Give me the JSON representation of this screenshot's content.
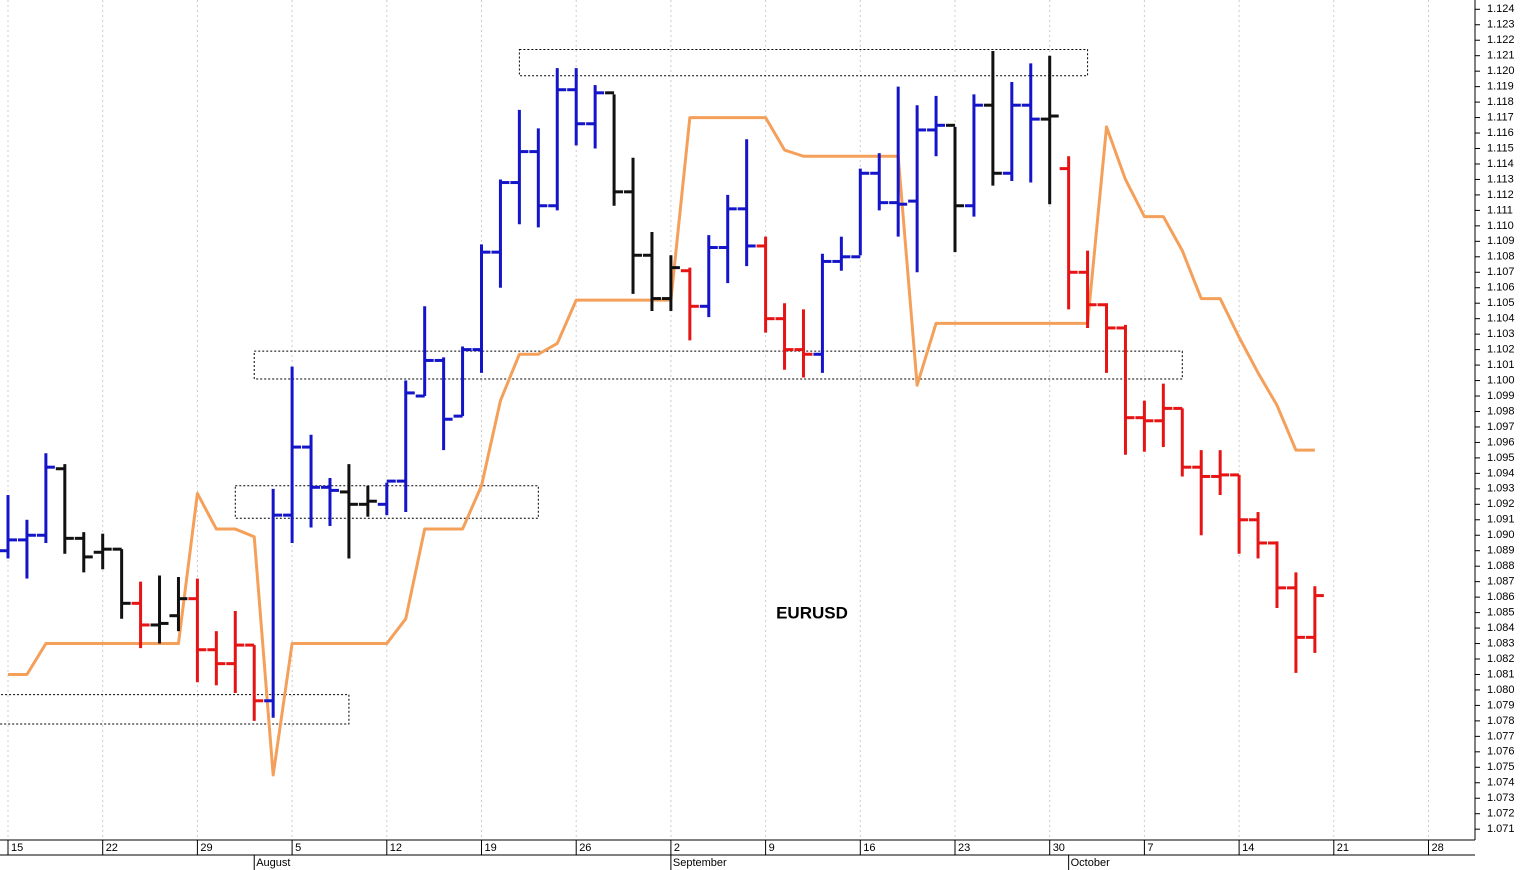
{
  "chart_data": {
    "type": "ohlc",
    "annotation": "EURUSD",
    "categories": [
      "15",
      null,
      null,
      null,
      null,
      "22",
      null,
      null,
      null,
      null,
      "29",
      null,
      null,
      null,
      null,
      "5",
      null,
      null,
      null,
      null,
      "12",
      null,
      null,
      null,
      null,
      "19",
      null,
      null,
      null,
      null,
      "26",
      null,
      null,
      null,
      null,
      "2",
      null,
      null,
      null,
      null,
      "9",
      null,
      null,
      null,
      null,
      "16",
      null,
      null,
      null,
      null,
      "23",
      null,
      null,
      null,
      null,
      "30",
      null,
      null,
      null,
      null,
      "7",
      null,
      null,
      null,
      null,
      "14",
      null,
      null,
      null,
      null,
      "21",
      null,
      null,
      null,
      null,
      "28",
      null,
      null
    ],
    "month_labels": [
      null,
      null,
      null,
      null,
      null,
      null,
      null,
      null,
      null,
      null,
      null,
      null,
      null,
      "August",
      null,
      null,
      null,
      null,
      null,
      null,
      null,
      null,
      null,
      null,
      null,
      null,
      null,
      null,
      null,
      null,
      null,
      null,
      null,
      null,
      null,
      "September",
      null,
      null,
      null,
      null,
      null,
      null,
      null,
      null,
      null,
      null,
      null,
      null,
      null,
      null,
      null,
      null,
      null,
      null,
      null,
      null,
      "October",
      null,
      null,
      null,
      null,
      null,
      null,
      null,
      null,
      null,
      null,
      null,
      null,
      null,
      null,
      null,
      null,
      null,
      null,
      null,
      null,
      null
    ],
    "open": [
      1.089,
      1.0897,
      1.09,
      1.0943,
      1.0898,
      1.0889,
      1.0891,
      1.0856,
      1.0842,
      1.0848,
      1.0859,
      1.0826,
      1.0817,
      1.0829,
      1.0793,
      1.0913,
      1.0957,
      1.0931,
      1.0928,
      1.092,
      1.092,
      1.0935,
      1.099,
      1.1013,
      1.0977,
      1.102,
      1.1083,
      1.1128,
      1.1148,
      1.1113,
      1.1188,
      1.1166,
      1.1186,
      1.1122,
      1.1081,
      1.1053,
      1.1071,
      1.1048,
      1.1086,
      1.1111,
      1.1087,
      1.104,
      1.102,
      1.1017,
      1.1077,
      1.108,
      1.1134,
      1.1115,
      1.1116,
      1.1162,
      1.1165,
      1.1113,
      1.1178,
      1.1134,
      1.1178,
      1.1169,
      1.1137,
      1.107,
      1.1049,
      1.1034,
      1.0976,
      1.0974,
      1.0982,
      1.0944,
      1.0938,
      1.0939,
      1.091,
      1.0895,
      1.0866,
      1.0834,
      null,
      null,
      null,
      null,
      null,
      null,
      null,
      null
    ],
    "high": [
      1.0926,
      1.091,
      1.0953,
      1.0946,
      1.0902,
      1.0901,
      1.0891,
      1.087,
      1.0874,
      1.0873,
      1.0872,
      1.0838,
      1.0851,
      1.0829,
      1.093,
      1.1009,
      1.0965,
      1.0937,
      1.0946,
      1.0932,
      1.0934,
      1.1,
      1.1048,
      1.1015,
      1.1022,
      1.1088,
      1.113,
      1.1175,
      1.1163,
      1.1202,
      1.1202,
      1.1191,
      1.1185,
      1.1144,
      1.1096,
      1.1081,
      1.1073,
      1.1094,
      1.112,
      1.1156,
      1.1093,
      1.105,
      1.1046,
      1.1082,
      1.1093,
      1.1137,
      1.1147,
      1.119,
      1.1178,
      1.1184,
      1.1164,
      1.1185,
      1.1213,
      1.1193,
      1.1205,
      1.121,
      1.1145,
      1.1084,
      1.105,
      1.1036,
      1.0987,
      1.0998,
      1.0982,
      1.0955,
      1.0955,
      1.0939,
      1.0915,
      1.0896,
      1.0876,
      1.0867,
      null,
      null,
      null,
      null,
      null,
      null,
      null,
      null
    ],
    "low": [
      1.0885,
      1.0872,
      1.0895,
      1.0888,
      1.0876,
      1.0878,
      1.0846,
      1.0827,
      1.083,
      1.0838,
      1.0805,
      1.0803,
      1.0798,
      1.078,
      1.0782,
      1.0895,
      1.0905,
      1.0906,
      1.0885,
      1.0912,
      1.0913,
      1.0915,
      1.099,
      1.0955,
      1.0977,
      1.1005,
      1.106,
      1.1101,
      1.1099,
      1.111,
      1.1152,
      1.115,
      1.1113,
      1.1056,
      1.1045,
      1.1045,
      1.1026,
      1.1041,
      1.1063,
      1.1074,
      1.1031,
      1.1007,
      1.1002,
      1.1005,
      1.1071,
      1.1081,
      1.111,
      1.1093,
      1.107,
      1.1145,
      1.1083,
      1.1106,
      1.1126,
      1.1129,
      1.1128,
      1.1114,
      1.1046,
      1.1034,
      1.1005,
      1.0952,
      1.0954,
      1.0957,
      1.0938,
      1.09,
      1.0926,
      1.0888,
      1.0885,
      1.0853,
      1.0811,
      1.0824,
      null,
      null,
      null,
      null,
      null,
      null,
      null,
      null
    ],
    "close": [
      1.0897,
      1.09,
      1.0944,
      1.0898,
      1.0886,
      1.0891,
      1.0856,
      1.0842,
      1.0843,
      1.0859,
      1.0826,
      1.0817,
      1.0829,
      1.0793,
      1.0913,
      1.0957,
      1.0931,
      1.0929,
      1.092,
      1.0922,
      1.0935,
      1.0992,
      1.1013,
      1.0975,
      1.102,
      1.1083,
      1.1128,
      1.1148,
      1.1113,
      1.1188,
      1.1166,
      1.1186,
      1.1122,
      1.1081,
      1.1053,
      1.1073,
      1.1048,
      1.1086,
      1.1111,
      1.1087,
      1.104,
      1.102,
      1.1017,
      1.1077,
      1.108,
      1.1134,
      1.1115,
      1.1114,
      1.1162,
      1.1165,
      1.1113,
      1.1178,
      1.1134,
      1.1178,
      1.1169,
      1.1171,
      1.107,
      1.1049,
      1.1034,
      1.0976,
      1.0974,
      1.0982,
      1.0944,
      1.0938,
      1.0939,
      1.091,
      1.0895,
      1.0866,
      1.0834,
      1.0861,
      null,
      null,
      null,
      null,
      null,
      null,
      null,
      null
    ],
    "bar_colors": [
      "#1414c8",
      "#1414c8",
      "#1414c8",
      "#111111",
      "#111111",
      "#111111",
      "#111111",
      "#e61414",
      "#111111",
      "#111111",
      "#e61414",
      "#e61414",
      "#e61414",
      "#e61414",
      "#1414c8",
      "#1414c8",
      "#1414c8",
      "#1414c8",
      "#111111",
      "#111111",
      "#1414c8",
      "#1414c8",
      "#1414c8",
      "#1414c8",
      "#1414c8",
      "#1414c8",
      "#1414c8",
      "#1414c8",
      "#1414c8",
      "#1414c8",
      "#1414c8",
      "#1414c8",
      "#111111",
      "#111111",
      "#111111",
      "#111111",
      "#e61414",
      "#1414c8",
      "#1414c8",
      "#1414c8",
      "#e61414",
      "#e61414",
      "#e61414",
      "#1414c8",
      "#1414c8",
      "#1414c8",
      "#1414c8",
      "#1414c8",
      "#1414c8",
      "#1414c8",
      "#111111",
      "#1414c8",
      "#111111",
      "#1414c8",
      "#1414c8",
      "#111111",
      "#e61414",
      "#e61414",
      "#e61414",
      "#e61414",
      "#e61414",
      "#e61414",
      "#e61414",
      "#e61414",
      "#e61414",
      "#e61414",
      "#e61414",
      "#e61414",
      "#e61414",
      "#e61414",
      null,
      null,
      null,
      null,
      null,
      null,
      null,
      null
    ],
    "indicator": {
      "color": "#f5a05a",
      "values": [
        1.081,
        1.081,
        1.083,
        1.083,
        1.083,
        1.083,
        1.083,
        1.083,
        1.083,
        1.083,
        1.0927,
        1.0904,
        1.0904,
        1.0899,
        1.0745,
        1.083,
        1.083,
        1.083,
        1.083,
        1.083,
        1.083,
        1.0846,
        1.0904,
        1.0904,
        1.0904,
        1.0932,
        1.0987,
        1.1017,
        1.1017,
        1.1024,
        1.1052,
        1.1052,
        1.1052,
        1.1052,
        1.1052,
        1.1052,
        1.117,
        1.117,
        1.117,
        1.117,
        1.117,
        1.1149,
        1.1145,
        1.1145,
        1.1145,
        1.1145,
        1.1145,
        1.1145,
        1.0997,
        1.1037,
        1.1037,
        1.1037,
        1.1037,
        1.1037,
        1.1037,
        1.1037,
        1.1037,
        1.1037,
        1.1164,
        1.113,
        1.1106,
        1.1106,
        1.1084,
        1.1053,
        1.1053,
        1.1028,
        1.1005,
        1.0984,
        1.0955,
        1.0955,
        null,
        null,
        null,
        null,
        null,
        null,
        null,
        null
      ]
    },
    "zones": [
      {
        "x": [
          27,
          57
        ],
        "y": [
          1.1197,
          1.1214
        ]
      },
      {
        "x": [
          13,
          62
        ],
        "y": [
          1.1001,
          1.1019
        ]
      },
      {
        "x": [
          12,
          28
        ],
        "y": [
          1.0911,
          1.0932
        ]
      },
      {
        "x": [
          -1,
          18
        ],
        "y": [
          1.0778,
          1.0797
        ]
      }
    ],
    "ylim": [
      1.0703,
      1.1246
    ],
    "yticks": [
      1.071,
      1.072,
      1.073,
      1.074,
      1.075,
      1.076,
      1.077,
      1.078,
      1.079,
      {
        "value": 1.08,
        "label": "1.080"
      },
      1.081,
      1.082,
      1.083,
      1.084,
      1.085,
      1.086,
      1.087,
      1.088,
      1.089,
      {
        "value": 1.09,
        "label": "1.090"
      },
      1.091,
      1.092,
      1.093,
      1.094,
      1.095,
      1.096,
      1.097,
      1.098,
      1.099,
      {
        "value": 1.1,
        "label": "1.100"
      },
      1.101,
      1.102,
      1.103,
      1.104,
      1.105,
      1.106,
      1.107,
      1.108,
      1.109,
      {
        "value": 1.11,
        "label": "1.110"
      },
      1.111,
      1.112,
      1.113,
      1.114,
      1.115,
      1.116,
      1.117,
      1.118,
      1.119,
      {
        "value": 1.12,
        "label": "1.120"
      },
      1.121,
      1.122,
      1.123,
      1.124
    ],
    "grid": true
  }
}
